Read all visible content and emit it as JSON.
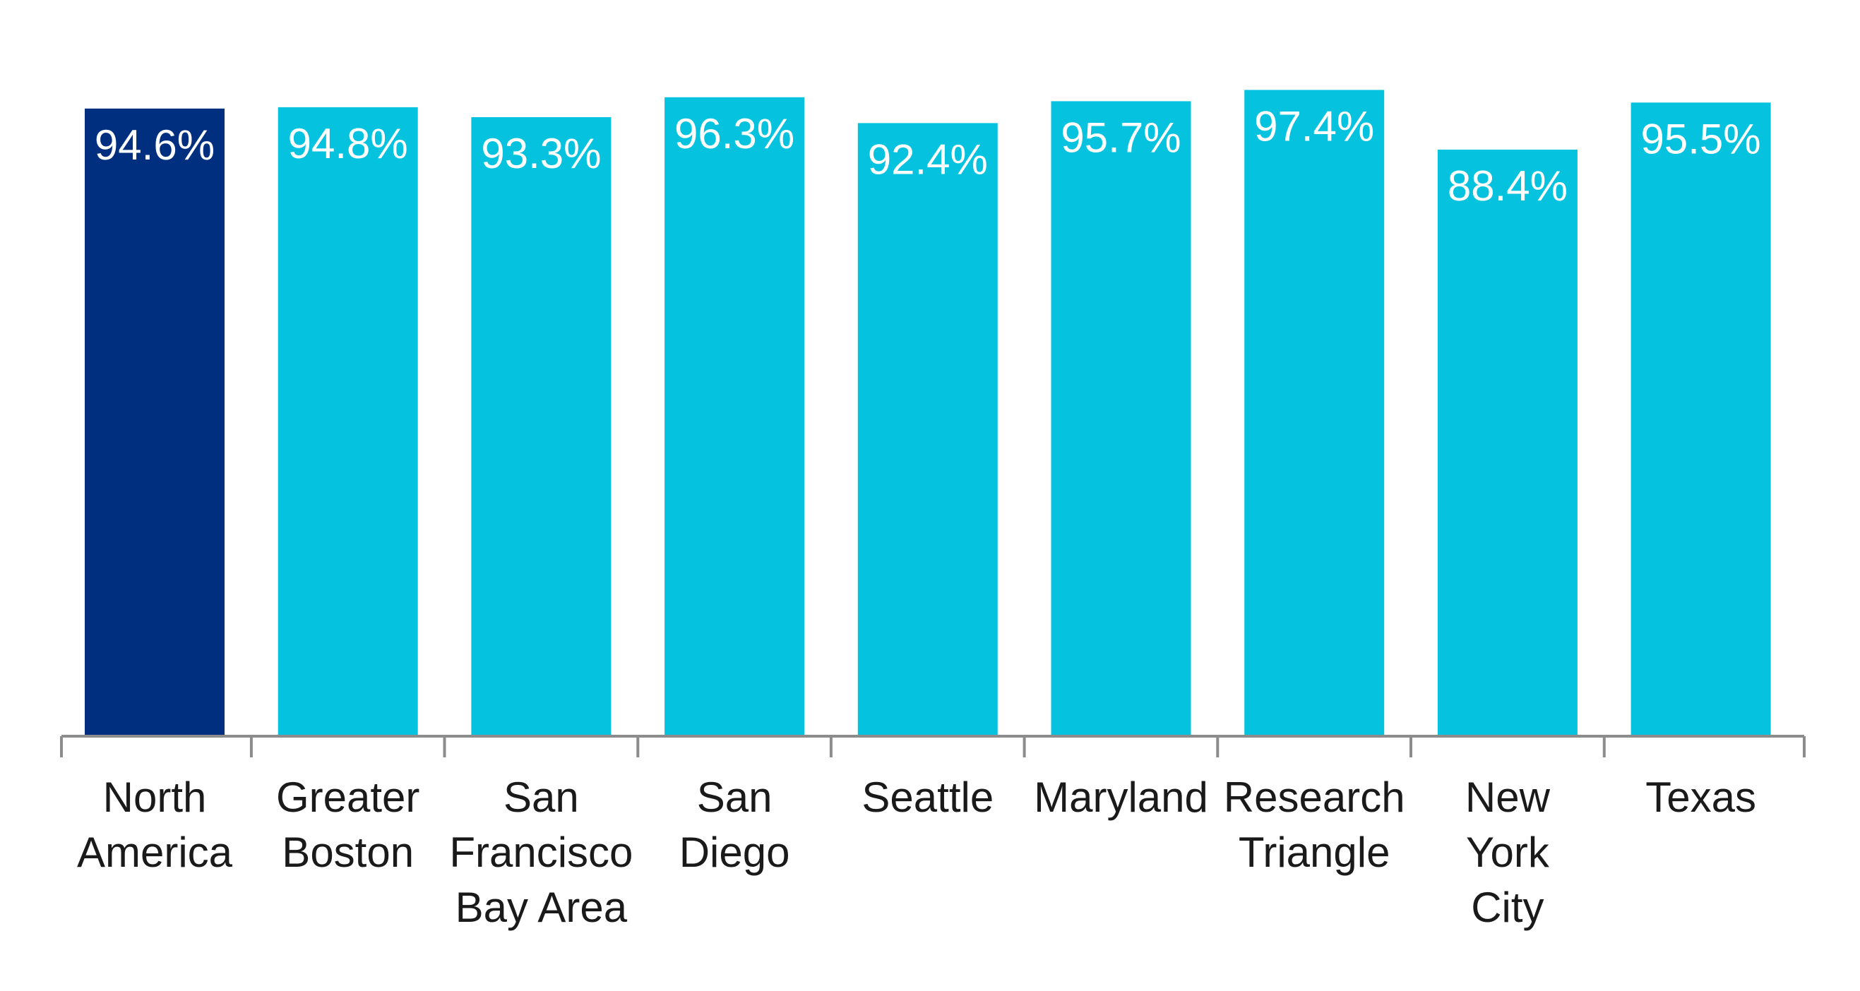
{
  "chart_data": {
    "type": "bar",
    "title": "",
    "xlabel": "",
    "ylabel": "",
    "ylim": [
      0,
      100
    ],
    "grid": false,
    "legend": "none",
    "categories": [
      [
        "North",
        "America"
      ],
      [
        "Greater",
        "Boston"
      ],
      [
        "San",
        "Francisco",
        "Bay Area"
      ],
      [
        "San",
        "Diego"
      ],
      [
        "Seattle"
      ],
      [
        "Maryland"
      ],
      [
        "Research",
        "Triangle"
      ],
      [
        "New",
        "York",
        "City"
      ],
      [
        "Texas"
      ]
    ],
    "values": [
      94.6,
      94.8,
      93.3,
      96.3,
      92.4,
      95.7,
      97.4,
      88.4,
      95.5
    ],
    "data_labels": [
      "94.6%",
      "94.8%",
      "93.3%",
      "96.3%",
      "92.4%",
      "95.7%",
      "97.4%",
      "88.4%",
      "95.5%"
    ],
    "colors": {
      "highlight": "#002F80",
      "default": "#05C3DE",
      "axis": "#8C8C8C"
    },
    "highlight_index": 0
  }
}
